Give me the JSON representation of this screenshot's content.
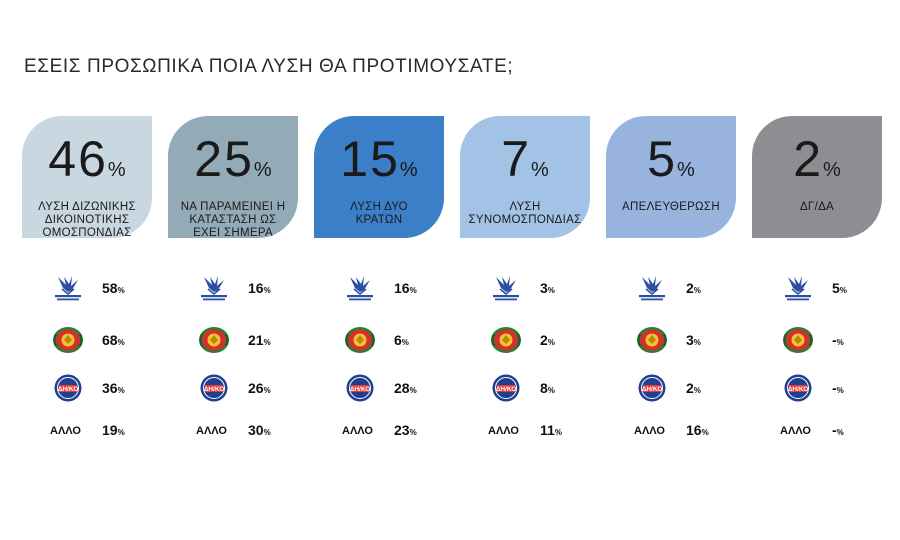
{
  "title": "ΕΣΕΙΣ ΠΡΟΣΩΠΙΚΑ ΠΟΙΑ ΛΥΣΗ ΘΑ ΠΡΟΤΙΜΟΥΣΑΤΕ;",
  "percent_symbol": "%",
  "colors": {
    "card1": "#c8d7e0",
    "card2": "#93aab7",
    "card3": "#3b7fc8",
    "card4": "#a3c3e6",
    "card5": "#98b4de",
    "card6": "#8c8e91"
  },
  "party_icons": [
    "disy-logo-icon",
    "akel-logo-icon",
    "diko-logo-icon"
  ],
  "other_label": "ΑΛΛΟ",
  "chart_data": {
    "type": "table",
    "title": "ΕΣΕΙΣ ΠΡΟΣΩΠΙΚΑ ΠΟΙΑ ΛΥΣΗ ΘΑ ΠΡΟΤΙΜΟΥΣΑΤΕ;",
    "options": [
      {
        "value": "46",
        "label": "ΛΥΣΗ ΔΙΖΩΝΙΚΗΣ\nΔΙΚΟΙΝΟΤΙΚΗΣ\nΟΜΟΣΠΟΝΔΙΑΣ",
        "party_values": [
          "58",
          "68",
          "36"
        ],
        "other": "19"
      },
      {
        "value": "25",
        "label": "ΝΑ ΠΑΡΑΜΕΙΝΕΙ Η\nΚΑΤΑΣΤΑΣΗ ΩΣ\nΕΧΕΙ ΣΗΜΕΡΑ",
        "party_values": [
          "16",
          "21",
          "26"
        ],
        "other": "30"
      },
      {
        "value": "15",
        "label": "ΛΥΣΗ ΔΥΟ\nΚΡΑΤΩΝ",
        "party_values": [
          "16",
          "6",
          "28"
        ],
        "other": "23"
      },
      {
        "value": "7",
        "label": "ΛΥΣΗ\nΣΥΝΟΜΟΣΠΟΝΔΙΑΣ",
        "party_values": [
          "3",
          "2",
          "8"
        ],
        "other": "11"
      },
      {
        "value": "5",
        "label": "ΑΠΕΛΕΥΘΕΡΩΣΗ",
        "party_values": [
          "2",
          "3",
          "2"
        ],
        "other": "16"
      },
      {
        "value": "2",
        "label": "ΔΓ/ΔΑ",
        "party_values": [
          "5",
          "-",
          "-"
        ],
        "other": "-"
      }
    ]
  }
}
